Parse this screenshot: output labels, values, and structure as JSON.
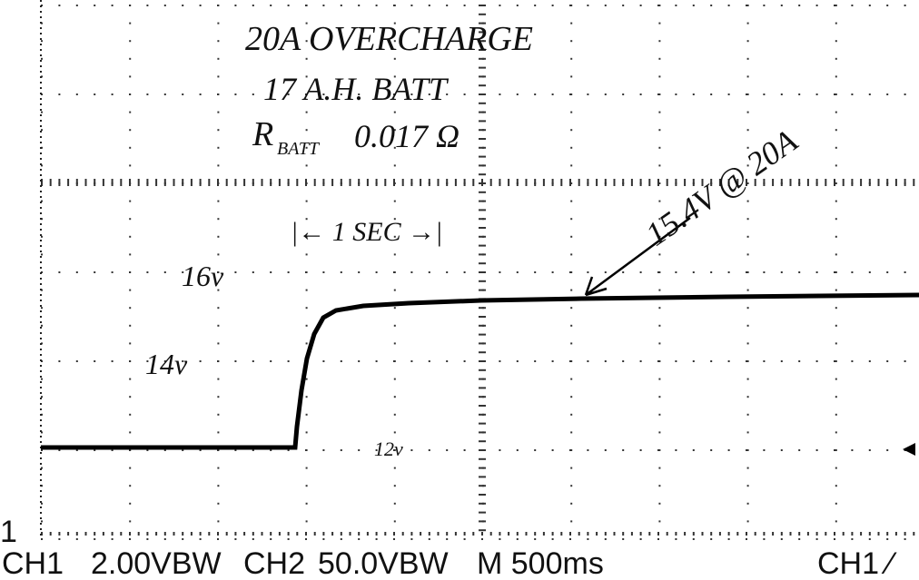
{
  "notes": {
    "title": "20A OVERCHARGE",
    "battery": "17 A.H. BATT",
    "resistance_symbol": "R",
    "resistance_sub": "BATT",
    "resistance_value": "0.017 Ω",
    "time_span": "|← 1 SEC →|",
    "callout": "15.4V @ 20A",
    "level_16": "16v",
    "level_14": "14v",
    "level_12": "12v"
  },
  "status": {
    "marker": "1",
    "ch1": "CH1",
    "ch1_scale": "2.00VBW",
    "ch2": "CH2",
    "ch2_scale": "50.0VBW",
    "time": "M 500ms",
    "trigger": "CH1 ⁄"
  }
}
